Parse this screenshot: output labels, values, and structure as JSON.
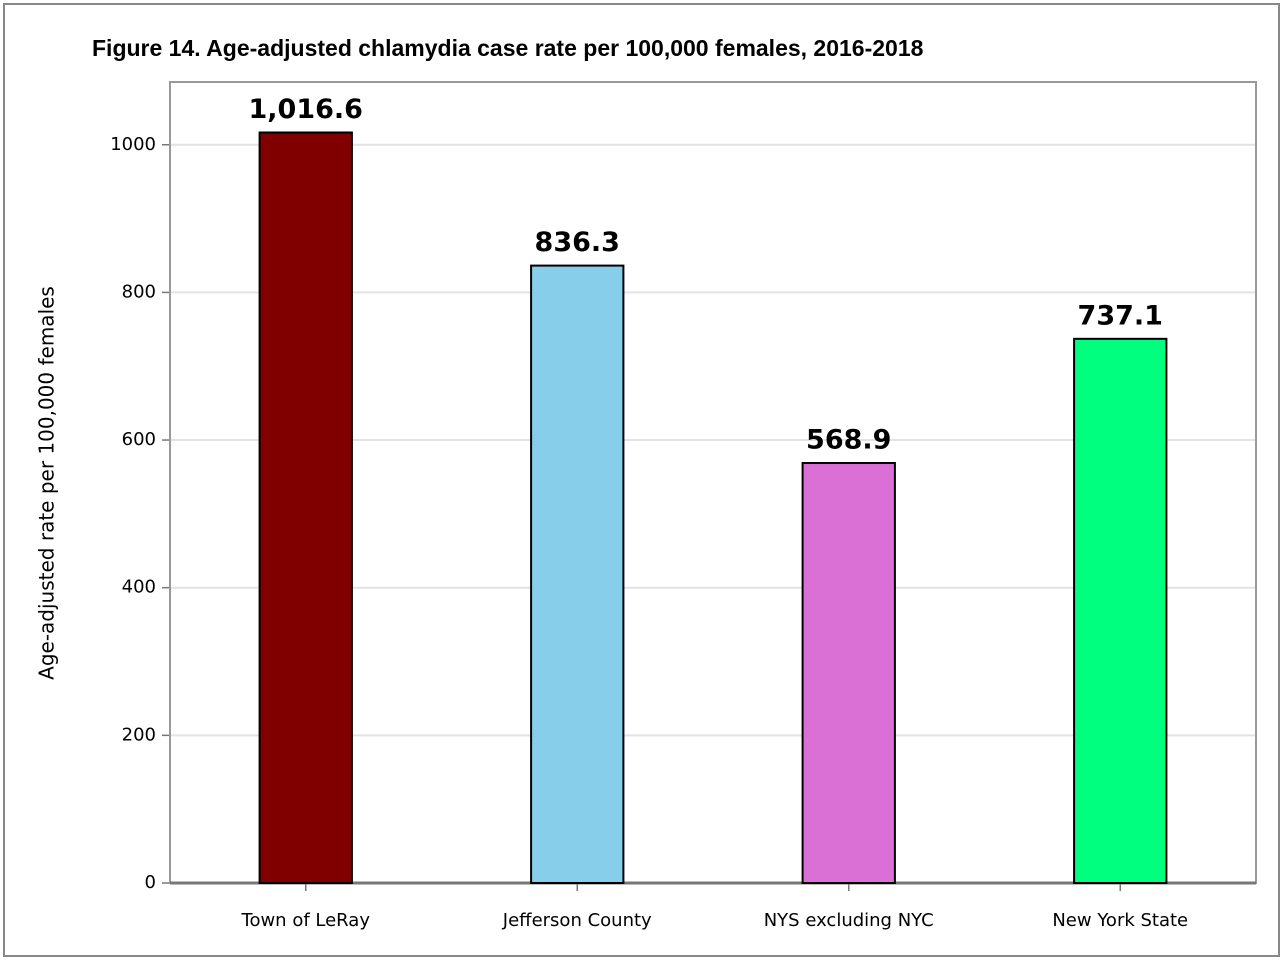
{
  "chart_data": {
    "type": "bar",
    "title": "Figure 14. Age-adjusted chlamydia case rate per 100,000 females, 2016-2018",
    "y_label": "Age-adjusted rate per 100,000 females",
    "categories": [
      "Town of LeRay",
      "Jefferson County",
      "NYS excluding NYC",
      "New York State"
    ],
    "values": [
      1016.6,
      836.3,
      568.9,
      737.1
    ],
    "value_labels": [
      "1,016.6",
      "836.3",
      "568.9",
      "737.1"
    ],
    "colors": [
      "#800000",
      "#87ceeb",
      "#da70d6",
      "#00ff7f"
    ],
    "ylim": [
      0,
      1085
    ],
    "yticks": [
      0,
      200,
      400,
      600,
      800,
      1000
    ],
    "grid": true
  }
}
